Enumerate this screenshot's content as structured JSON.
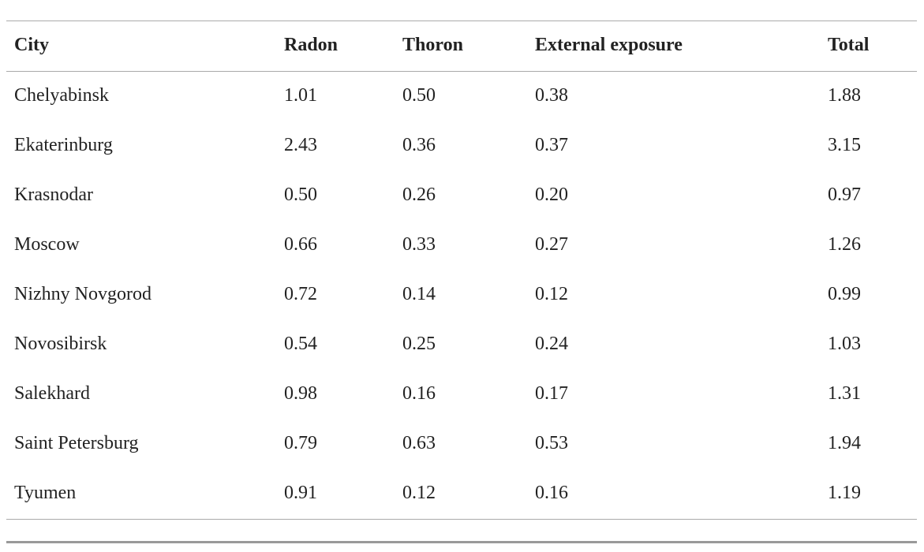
{
  "table": {
    "header": [
      "City",
      "Radon",
      "Thoron",
      "External exposure",
      "Total"
    ],
    "rows": [
      [
        "Chelyabinsk",
        "1.01",
        "0.50",
        "0.38",
        "1.88"
      ],
      [
        "Ekaterinburg",
        "2.43",
        "0.36",
        "0.37",
        "3.15"
      ],
      [
        "Krasnodar",
        "0.50",
        "0.26",
        "0.20",
        "0.97"
      ],
      [
        "Moscow",
        "0.66",
        "0.33",
        "0.27",
        "1.26"
      ],
      [
        "Nizhny Novgorod",
        "0.72",
        "0.14",
        "0.12",
        "0.99"
      ],
      [
        "Novosibirsk",
        "0.54",
        "0.25",
        "0.24",
        "1.03"
      ],
      [
        "Salekhard",
        "0.98",
        "0.16",
        "0.17",
        "1.31"
      ],
      [
        "Saint Petersburg",
        "0.79",
        "0.63",
        "0.53",
        "1.94"
      ],
      [
        "Tyumen",
        "0.91",
        "0.12",
        "0.16",
        "1.19"
      ]
    ]
  }
}
